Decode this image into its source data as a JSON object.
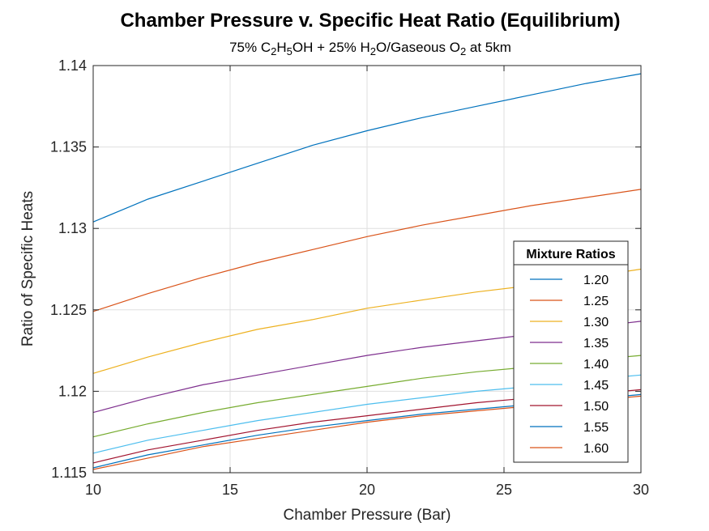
{
  "chart_data": {
    "type": "line",
    "title": "Chamber Pressure v. Specific Heat Ratio (Equilibrium)",
    "subtitle": "75% C2H5OH + 25% H2O/Gaseous O2 at 5km",
    "subtitle_parts": [
      {
        "t": "75% C",
        "sub": false
      },
      {
        "t": "2",
        "sub": true
      },
      {
        "t": "H",
        "sub": false
      },
      {
        "t": "5",
        "sub": true
      },
      {
        "t": "OH + 25% H",
        "sub": false
      },
      {
        "t": "2",
        "sub": true
      },
      {
        "t": "O/Gaseous O",
        "sub": false
      },
      {
        "t": "2",
        "sub": true
      },
      {
        "t": " at 5km",
        "sub": false
      }
    ],
    "xlabel": "Chamber Pressure (Bar)",
    "ylabel": "Ratio of Specific Heats",
    "xlim": [
      10,
      30
    ],
    "ylim": [
      1.115,
      1.14
    ],
    "xticks": [
      "10",
      "15",
      "20",
      "25",
      "30"
    ],
    "xtick_values": [
      10,
      15,
      20,
      25,
      30
    ],
    "yticks": [
      "1.115",
      "1.12",
      "1.125",
      "1.13",
      "1.135",
      "1.14"
    ],
    "ytick_values": [
      1.115,
      1.12,
      1.125,
      1.13,
      1.135,
      1.14
    ],
    "grid": true,
    "legend_title": "Mixture Ratios",
    "legend_position": "right",
    "x": [
      10,
      12,
      14,
      16,
      18,
      20,
      22,
      24,
      26,
      28,
      30
    ],
    "series": [
      {
        "name": "1.20",
        "color": "#0072BD",
        "values": [
          1.1304,
          1.1318,
          1.1329,
          1.134,
          1.1351,
          1.136,
          1.1368,
          1.1375,
          1.1382,
          1.1389,
          1.1395
        ]
      },
      {
        "name": "1.25",
        "color": "#D95319",
        "values": [
          1.1249,
          1.126,
          1.127,
          1.1279,
          1.1287,
          1.1295,
          1.1302,
          1.1308,
          1.1314,
          1.1319,
          1.1324
        ]
      },
      {
        "name": "1.30",
        "color": "#EDB120",
        "values": [
          1.1211,
          1.1221,
          1.123,
          1.1238,
          1.1244,
          1.1251,
          1.1256,
          1.1261,
          1.1265,
          1.127,
          1.1275
        ]
      },
      {
        "name": "1.35",
        "color": "#7E2F8E",
        "values": [
          1.1187,
          1.1196,
          1.1204,
          1.121,
          1.1216,
          1.1222,
          1.1227,
          1.1231,
          1.1235,
          1.1239,
          1.1243
        ]
      },
      {
        "name": "1.40",
        "color": "#77AC30",
        "values": [
          1.1172,
          1.118,
          1.1187,
          1.1193,
          1.1198,
          1.1203,
          1.1208,
          1.1212,
          1.1215,
          1.1219,
          1.1222
        ]
      },
      {
        "name": "1.45",
        "color": "#4DBEEE",
        "values": [
          1.1162,
          1.117,
          1.1176,
          1.1182,
          1.1187,
          1.1192,
          1.1196,
          1.12,
          1.1203,
          1.1207,
          1.121
        ]
      },
      {
        "name": "1.50",
        "color": "#A2142F",
        "values": [
          1.1156,
          1.1164,
          1.117,
          1.1176,
          1.1181,
          1.1185,
          1.1189,
          1.1193,
          1.1196,
          1.1198,
          1.1201
        ]
      },
      {
        "name": "1.55",
        "color": "#0072BD",
        "values": [
          1.1153,
          1.1161,
          1.1167,
          1.1173,
          1.1178,
          1.1182,
          1.1186,
          1.1189,
          1.1192,
          1.1195,
          1.1198
        ]
      },
      {
        "name": "1.60",
        "color": "#D95319",
        "values": [
          1.1152,
          1.1159,
          1.1166,
          1.1171,
          1.1176,
          1.1181,
          1.1185,
          1.1188,
          1.1191,
          1.1194,
          1.1197
        ]
      }
    ]
  }
}
